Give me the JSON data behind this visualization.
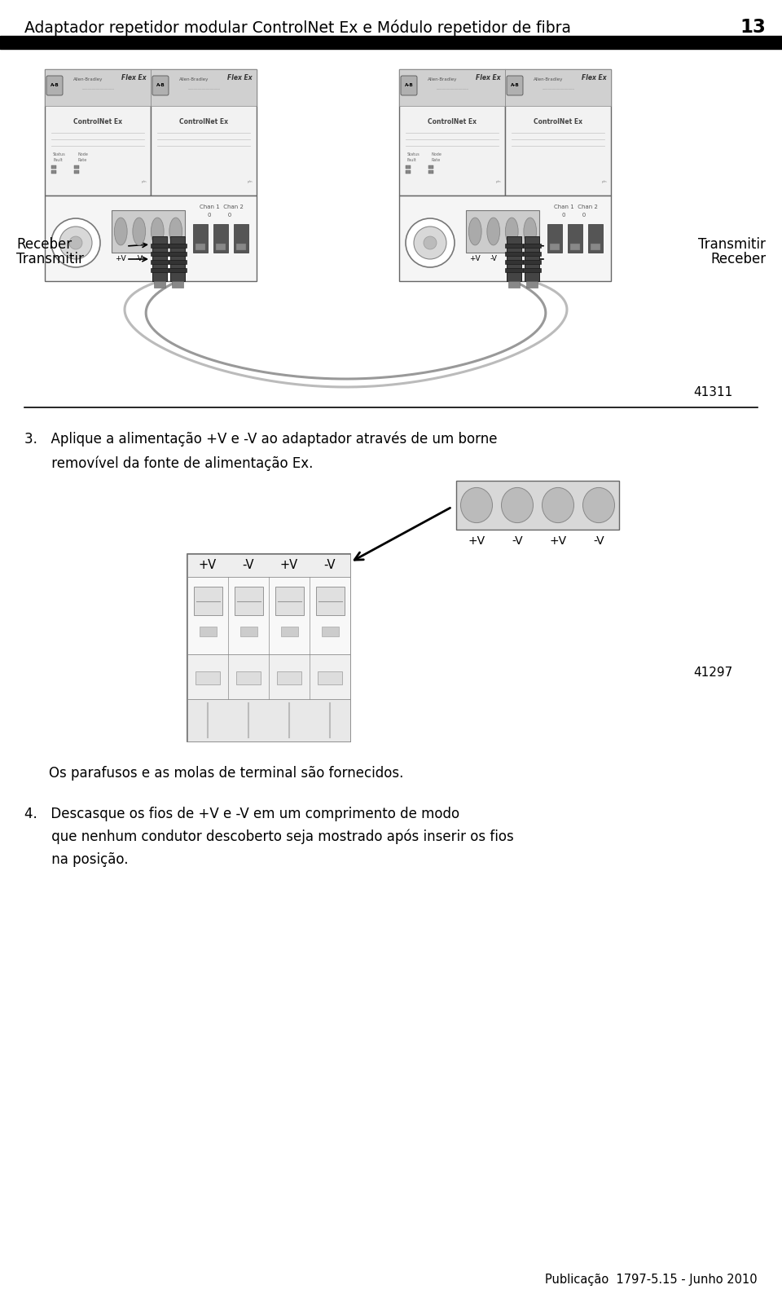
{
  "bg_color": "#ffffff",
  "header_text": "Adaptador repetidor modular ControlNet Ex e Módulo repetidor de fibra",
  "header_number": "13",
  "header_font_size": 13.5,
  "footer_text": "Publicação  1797-5.15 - Junho 2010",
  "footer_font_size": 10.5,
  "step3_line1": "3. Aplique a alimentação +V e -V ao adaptador através de um borne",
  "step3_line2": "  removível da fonte de alimentação Ex.",
  "step4_line1": "4. Descasque os fios de +V e -V em um comprimento de modo",
  "step4_line2": "  que nenhum condutor descoberto seja mostrado após inserir os fios",
  "step4_line3": "  na posição.",
  "text_font_size": 12,
  "label_41311": "41311",
  "label_41297": "41297",
  "note_text": "Os parafusos e as molas de terminal são fornecidos.",
  "label_receber": "Receber",
  "label_transmitir_left": "Transmitir",
  "label_transmitir_right": "Transmitir",
  "label_receber_right": "Receber",
  "term_labels": [
    "+V",
    "-V",
    "+V",
    "-V"
  ]
}
